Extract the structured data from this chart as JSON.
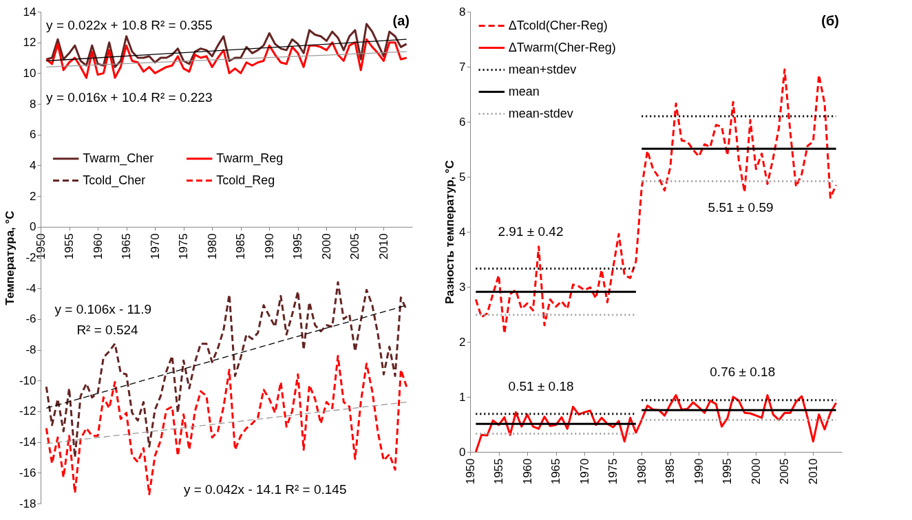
{
  "chart_data": [
    {
      "type": "line",
      "ylabel": "Температура, °C",
      "x": [
        1951,
        1952,
        1953,
        1954,
        1955,
        1956,
        1957,
        1958,
        1959,
        1960,
        1961,
        1962,
        1963,
        1964,
        1965,
        1966,
        1967,
        1968,
        1969,
        1970,
        1971,
        1972,
        1973,
        1974,
        1975,
        1976,
        1977,
        1978,
        1979,
        1980,
        1981,
        1982,
        1983,
        1984,
        1985,
        1986,
        1987,
        1988,
        1989,
        1990,
        1991,
        1992,
        1993,
        1994,
        1995,
        1996,
        1997,
        1998,
        1999,
        2000,
        2001,
        2002,
        2003,
        2004,
        2005,
        2006,
        2007,
        2008,
        2009,
        2010,
        2011,
        2012,
        2013,
        2014
      ],
      "xlim": [
        1950,
        2015
      ],
      "xticks": [
        1950,
        1955,
        1960,
        1965,
        1970,
        1975,
        1980,
        1985,
        1990,
        1995,
        2000,
        2005,
        2010
      ],
      "ylim": [
        -18,
        14
      ],
      "yticks": [
        -18,
        -16,
        -14,
        -12,
        -10,
        -8,
        -6,
        -4,
        -2,
        0,
        2,
        4,
        6,
        8,
        10,
        12,
        14
      ],
      "grid": false,
      "legend": "left",
      "series": [
        {
          "name": "Twarm_Cher",
          "color": "#632523",
          "line_style": "solid",
          "values": [
            10.9,
            11.0,
            12.2,
            10.9,
            11.3,
            11.8,
            10.8,
            10.5,
            11.8,
            10.6,
            10.5,
            12.0,
            10.4,
            10.8,
            12.4,
            11.4,
            11.0,
            11.0,
            11.1,
            10.7,
            11.0,
            11.0,
            11.2,
            11.6,
            10.8,
            10.6,
            11.4,
            11.6,
            11.5,
            11.1,
            11.8,
            12.4,
            10.8,
            11.0,
            11.0,
            11.7,
            11.3,
            11.5,
            11.8,
            12.6,
            11.9,
            11.6,
            11.5,
            12.2,
            11.9,
            11.3,
            12.8,
            12.5,
            12.4,
            12.1,
            12.7,
            12.3,
            11.5,
            12.4,
            12.8,
            10.9,
            13.2,
            12.7,
            11.9,
            11.1,
            12.7,
            12.4,
            11.7,
            11.9
          ]
        },
        {
          "name": "Tcold_Cher",
          "color": "#632523",
          "line_style": "dashed",
          "values": [
            -10.4,
            -12.9,
            -11.2,
            -13.3,
            -10.5,
            -15.0,
            -11.0,
            -10.2,
            -11.1,
            -10.8,
            -8.5,
            -8.1,
            -7.6,
            -9.5,
            -9.6,
            -12.1,
            -12.6,
            -11.4,
            -14.3,
            -11.9,
            -11.0,
            -9.4,
            -8.4,
            -12.1,
            -8.7,
            -10.5,
            -8.8,
            -7.6,
            -7.6,
            -8.8,
            -7.9,
            -6.7,
            -4.4,
            -9.7,
            -8.5,
            -7.0,
            -7.3,
            -6.9,
            -5.1,
            -5.8,
            -6.5,
            -4.5,
            -7.0,
            -5.7,
            -4.2,
            -8.0,
            -4.9,
            -6.4,
            -6.8,
            -6.4,
            -6.5,
            -3.6,
            -6.0,
            -5.7,
            -8.1,
            -6.1,
            -4.1,
            -5.1,
            -7.0,
            -9.6,
            -7.8,
            -9.7,
            -4.6,
            -5.4
          ]
        },
        {
          "name": "Twarm_Reg",
          "color": "#ff0000",
          "line_style": "solid",
          "values": [
            10.9,
            10.6,
            11.9,
            10.2,
            10.7,
            11.0,
            10.4,
            9.7,
            11.4,
            9.9,
            10.0,
            11.5,
            9.7,
            10.4,
            11.8,
            10.8,
            10.7,
            10.1,
            10.4,
            10.0,
            10.2,
            10.4,
            10.5,
            11.1,
            10.3,
            10.1,
            11.2,
            11.0,
            11.1,
            10.4,
            11.0,
            11.5,
            10.0,
            10.3,
            10.0,
            10.7,
            10.5,
            10.7,
            10.8,
            11.8,
            11.2,
            10.7,
            10.6,
            11.7,
            11.3,
            10.4,
            11.8,
            11.8,
            11.7,
            11.5,
            12.0,
            11.2,
            10.8,
            11.8,
            12.0,
            10.2,
            12.2,
            11.7,
            11.3,
            10.8,
            12.0,
            12.0,
            10.9,
            11.0
          ]
        },
        {
          "name": "Tcold_Reg",
          "color": "#ff0000",
          "line_style": "dashed",
          "values": [
            -13.1,
            -15.4,
            -13.7,
            -16.3,
            -13.6,
            -17.3,
            -13.8,
            -13.1,
            -13.6,
            -13.6,
            -11.1,
            -11.8,
            -10.1,
            -12.5,
            -12.1,
            -14.9,
            -15.3,
            -14.4,
            -17.4,
            -14.9,
            -13.9,
            -11.9,
            -11.7,
            -14.9,
            -12.2,
            -14.5,
            -12.0,
            -10.7,
            -11.0,
            -13.7,
            -13.3,
            -11.7,
            -9.3,
            -14.5,
            -13.6,
            -13.1,
            -12.8,
            -12.4,
            -10.6,
            -11.2,
            -12.1,
            -10.1,
            -13.0,
            -12.0,
            -9.6,
            -14.5,
            -10.3,
            -11.2,
            -12.8,
            -11.4,
            -11.8,
            -8.4,
            -11.4,
            -11.7,
            -15.1,
            -11.4,
            -8.9,
            -10.7,
            -13.4,
            -15.2,
            -14.8,
            -15.8,
            -9.3,
            -10.4
          ]
        },
        {
          "type": "line",
          "color": "#000000",
          "line_style": "solid",
          "x": [
            1951,
            2014
          ],
          "values": [
            10.8,
            12.2
          ]
        },
        {
          "type": "line",
          "color": "#999999",
          "line_style": "solid",
          "x": [
            1951,
            2014
          ],
          "values": [
            10.4,
            11.4
          ]
        },
        {
          "type": "line",
          "color": "#000000",
          "line_style": "dashed",
          "x": [
            1951,
            2014
          ],
          "values": [
            -11.8,
            -5.1
          ]
        },
        {
          "type": "line",
          "color": "#999999",
          "line_style": "dashed",
          "x": [
            1951,
            2014
          ],
          "values": [
            -14.1,
            -11.4
          ]
        }
      ],
      "annotations": [
        "y = 0.022x + 10.8  R² = 0.355",
        "y = 0.016x + 10.4  R² = 0.223",
        "y = 0.106x - 11.9",
        "R² = 0.524",
        "y = 0.042x - 14.1  R² = 0.145",
        "(a)"
      ]
    },
    {
      "type": "line",
      "ylabel": "Разность температур, °C",
      "x": [
        1951,
        1952,
        1953,
        1954,
        1955,
        1956,
        1957,
        1958,
        1959,
        1960,
        1961,
        1962,
        1963,
        1964,
        1965,
        1966,
        1967,
        1968,
        1969,
        1970,
        1971,
        1972,
        1973,
        1974,
        1975,
        1976,
        1977,
        1978,
        1979,
        1980,
        1981,
        1982,
        1983,
        1984,
        1985,
        1986,
        1987,
        1988,
        1989,
        1990,
        1991,
        1992,
        1993,
        1994,
        1995,
        1996,
        1997,
        1998,
        1999,
        2000,
        2001,
        2002,
        2003,
        2004,
        2005,
        2006,
        2007,
        2008,
        2009,
        2010,
        2011,
        2012,
        2013,
        2014
      ],
      "xlim": [
        1950,
        2015
      ],
      "xticks": [
        1950,
        1955,
        1960,
        1965,
        1970,
        1975,
        1980,
        1985,
        1990,
        1995,
        2000,
        2005,
        2010
      ],
      "ylim": [
        0,
        8
      ],
      "yticks": [
        0,
        1,
        2,
        3,
        4,
        5,
        6,
        7,
        8
      ],
      "grid": false,
      "legend": "top left",
      "series": [
        {
          "name": "ΔTcold(Cher-Reg)",
          "color": "#ff0000",
          "line_style": "dashed",
          "values": [
            2.77,
            2.45,
            2.52,
            2.87,
            3.21,
            2.15,
            2.87,
            2.94,
            2.6,
            2.7,
            2.57,
            3.73,
            2.3,
            2.77,
            2.64,
            2.74,
            2.6,
            3.04,
            3.01,
            2.94,
            2.99,
            2.79,
            3.31,
            2.72,
            3.34,
            3.96,
            3.21,
            3.16,
            3.46,
            4.8,
            5.47,
            5.14,
            4.99,
            4.75,
            5.17,
            6.33,
            5.66,
            5.64,
            5.49,
            5.37,
            5.59,
            5.54,
            5.94,
            5.91,
            5.39,
            6.36,
            5.29,
            4.72,
            6.03,
            5.14,
            5.42,
            4.87,
            5.34,
            5.89,
            6.95,
            5.8,
            4.82,
            5.05,
            5.56,
            5.64,
            6.85,
            6.33,
            4.62,
            4.85
          ]
        },
        {
          "name": "ΔTwarm(Cher-Reg)",
          "color": "#ff0000",
          "line_style": "solid",
          "values": [
            0.0,
            0.31,
            0.3,
            0.57,
            0.49,
            0.63,
            0.31,
            0.72,
            0.46,
            0.68,
            0.46,
            0.42,
            0.64,
            0.47,
            0.49,
            0.63,
            0.42,
            0.82,
            0.68,
            0.72,
            0.75,
            0.49,
            0.62,
            0.51,
            0.45,
            0.56,
            0.19,
            0.62,
            0.35,
            0.58,
            0.84,
            0.77,
            0.76,
            0.66,
            0.86,
            1.03,
            0.77,
            0.78,
            0.9,
            0.81,
            0.71,
            0.93,
            0.87,
            0.46,
            0.61,
            1.0,
            0.93,
            0.71,
            0.7,
            0.66,
            0.62,
            1.03,
            0.68,
            0.58,
            0.71,
            0.71,
            0.91,
            1.01,
            0.63,
            0.19,
            0.68,
            0.41,
            0.71,
            0.89
          ]
        },
        {
          "name": "mean+stdev",
          "color": "#000000",
          "line_style": "dotted",
          "x": [
            1951,
            1979,
            1979.5,
            1980,
            2014
          ],
          "values": [
            3.33,
            3.33,
            null,
            6.1,
            6.1
          ]
        },
        {
          "name": "mean",
          "color": "#000000",
          "line_style": "solid",
          "x": [
            1951,
            1979,
            1979.5,
            1980,
            2014
          ],
          "values": [
            2.91,
            2.91,
            null,
            5.51,
            5.51
          ]
        },
        {
          "name": "mean-stdev",
          "color": "#a6a6a6",
          "line_style": "dotted",
          "x": [
            1951,
            1979,
            1979.5,
            1980,
            2014
          ],
          "values": [
            2.49,
            2.49,
            null,
            4.92,
            4.92
          ]
        },
        {
          "color": "#000000",
          "line_style": "dotted",
          "x": [
            1951,
            1979,
            1979.5,
            1980,
            2014
          ],
          "values": [
            0.69,
            0.69,
            null,
            0.94,
            0.94
          ]
        },
        {
          "color": "#000000",
          "line_style": "solid",
          "x": [
            1951,
            1979,
            1979.5,
            1980,
            2014
          ],
          "values": [
            0.51,
            0.51,
            null,
            0.76,
            0.76
          ]
        },
        {
          "color": "#a6a6a6",
          "line_style": "dotted",
          "x": [
            1951,
            1979,
            1979.5,
            1980,
            2014
          ],
          "values": [
            0.33,
            0.33,
            null,
            0.58,
            0.58
          ]
        }
      ],
      "annotations": [
        "2.91 ± 0.42",
        "5.51 ± 0.59",
        "0.51 ± 0.18",
        "0.76 ± 0.18",
        "(б)"
      ]
    }
  ]
}
